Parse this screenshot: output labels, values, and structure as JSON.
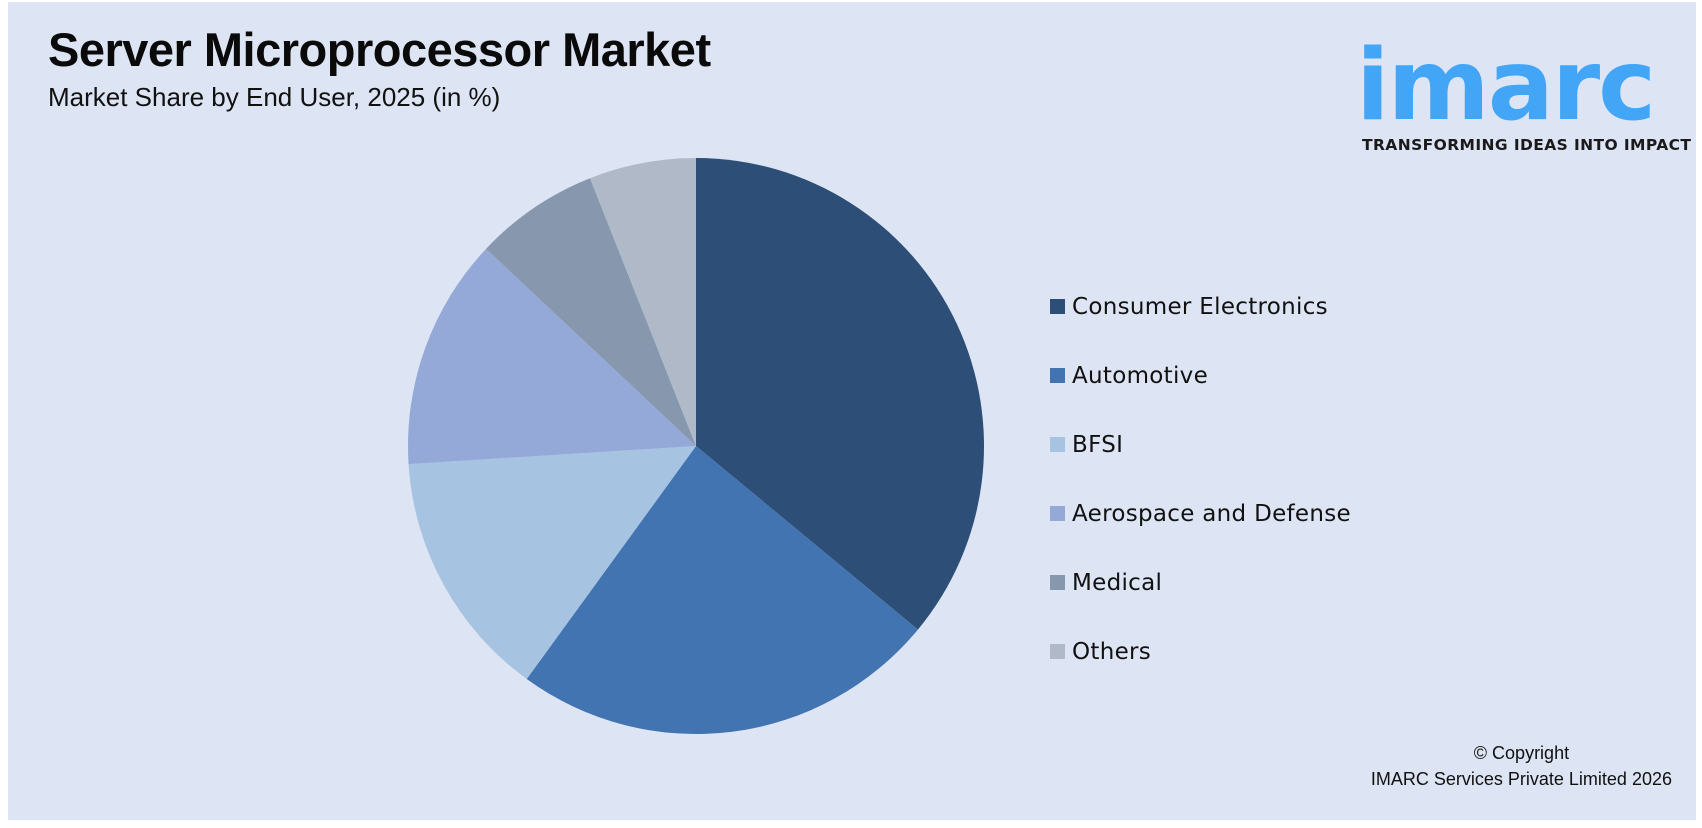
{
  "header": {
    "title": "Server Microprocessor Market",
    "subtitle": "Market Share by End User, 2025 (in %)"
  },
  "logo": {
    "wordmark": "imarc",
    "tagline": "TRANSFORMING IDEAS INTO IMPACT",
    "color": "#42a5f5"
  },
  "footer": {
    "line1": "© Copyright",
    "line2": "IMARC Services Private Limited 2026"
  },
  "legend": {
    "items": [
      {
        "label": "Consumer Electronics",
        "color": "#2c4e77"
      },
      {
        "label": "Automotive",
        "color": "#4174b0"
      },
      {
        "label": "BFSI",
        "color": "#a6c3e2"
      },
      {
        "label": "Aerospace and Defense",
        "color": "#94a9d8"
      },
      {
        "label": "Medical",
        "color": "#8797ae"
      },
      {
        "label": "Others",
        "color": "#afb9c8"
      }
    ]
  },
  "chart_data": {
    "type": "pie",
    "title": "Server Microprocessor Market",
    "subtitle": "Market Share by End User, 2025 (in %)",
    "categories": [
      "Consumer Electronics",
      "Automotive",
      "BFSI",
      "Aerospace and Defense",
      "Medical",
      "Others"
    ],
    "values": [
      36,
      24,
      14,
      13,
      7,
      6
    ],
    "colors": [
      "#2c4e77",
      "#4174b0",
      "#a6c3e2",
      "#94a9d8",
      "#8797ae",
      "#afb9c8"
    ],
    "start_angle_deg": 0,
    "direction": "clockwise",
    "data_labels": false,
    "legend_position": "right"
  }
}
